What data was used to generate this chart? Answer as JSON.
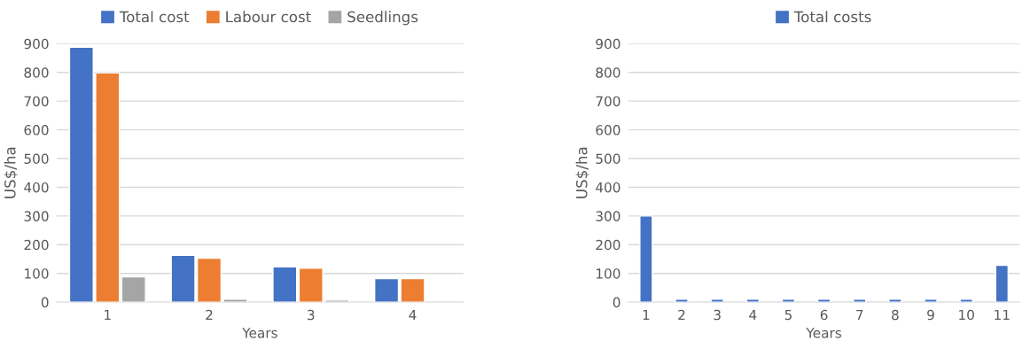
{
  "chart_data": [
    {
      "type": "bar",
      "xlabel": "Years",
      "ylabel": "US$/ha",
      "categories": [
        "1",
        "2",
        "3",
        "4"
      ],
      "series": [
        {
          "name": "Total cost",
          "color": "#4472c4",
          "values": [
            888,
            163,
            123,
            82
          ]
        },
        {
          "name": "Labour cost",
          "color": "#ed7d31",
          "values": [
            798,
            153,
            118,
            82
          ]
        },
        {
          "name": "Seedlings",
          "color": "#a5a5a5",
          "values": [
            88,
            10,
            7,
            null
          ]
        }
      ],
      "ylim": [
        0,
        900
      ],
      "yticks": [
        0,
        100,
        200,
        300,
        400,
        500,
        600,
        700,
        800,
        900
      ],
      "grid": "y",
      "legend": "top"
    },
    {
      "type": "bar",
      "xlabel": "Years",
      "ylabel": "US$/ha",
      "categories": [
        "1",
        "2",
        "3",
        "4",
        "5",
        "6",
        "7",
        "8",
        "9",
        "10",
        "11"
      ],
      "series": [
        {
          "name": "Total costs",
          "color": "#4472c4",
          "values": [
            300,
            10,
            10,
            10,
            10,
            10,
            10,
            10,
            10,
            10,
            128
          ]
        }
      ],
      "ylim": [
        0,
        900
      ],
      "yticks": [
        0,
        100,
        200,
        300,
        400,
        500,
        600,
        700,
        800,
        900
      ],
      "grid": "y",
      "legend": "top"
    }
  ]
}
